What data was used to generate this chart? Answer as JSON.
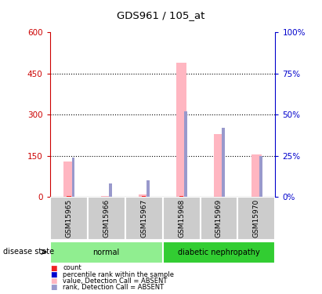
{
  "title": "GDS961 / 105_at",
  "samples": [
    "GSM15965",
    "GSM15966",
    "GSM15967",
    "GSM15968",
    "GSM15969",
    "GSM15970"
  ],
  "pink_bars": [
    130,
    5,
    10,
    490,
    230,
    155
  ],
  "red_marks": [
    5,
    2,
    3,
    4,
    2,
    2
  ],
  "blue_ranks_pct": [
    24,
    8,
    10,
    52,
    42,
    25
  ],
  "ylim_left": [
    0,
    600
  ],
  "ylim_right": [
    0,
    100
  ],
  "yticks_left": [
    0,
    150,
    300,
    450,
    600
  ],
  "yticks_right": [
    0,
    25,
    50,
    75,
    100
  ],
  "ytick_labels_left": [
    "0",
    "150",
    "300",
    "450",
    "600"
  ],
  "ytick_labels_right": [
    "0%",
    "25%",
    "50%",
    "75%",
    "100%"
  ],
  "pink_color": "#FFB6C1",
  "blue_color": "#9999CC",
  "red_color": "#EE2222",
  "axis_left_color": "#CC0000",
  "axis_right_color": "#0000CC",
  "bg_labels": "#CCCCCC",
  "group1_color": "#90EE90",
  "group2_color": "#32CD32"
}
